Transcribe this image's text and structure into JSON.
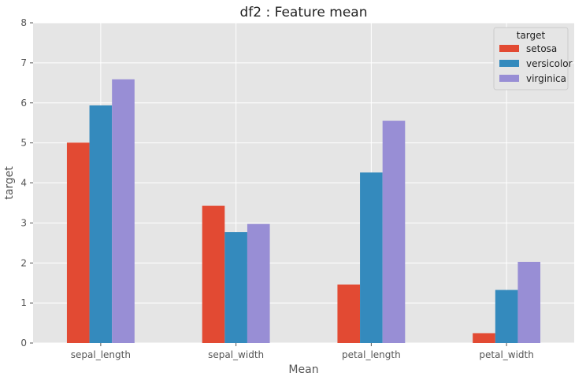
{
  "chart_data": {
    "type": "bar",
    "title": "df2 : Feature mean",
    "xlabel": "Mean",
    "ylabel": "target",
    "categories": [
      "sepal_length",
      "sepal_width",
      "petal_length",
      "petal_width"
    ],
    "ylim": [
      0,
      8
    ],
    "yticks": [
      "0",
      "1",
      "2",
      "3",
      "4",
      "5",
      "6",
      "7",
      "8"
    ],
    "grid": true,
    "legend": {
      "title": "target",
      "placement": "top-right"
    },
    "series": [
      {
        "name": "setosa",
        "values": [
          5.006,
          3.428,
          1.462,
          0.246
        ]
      },
      {
        "name": "versicolor",
        "values": [
          5.936,
          2.77,
          4.26,
          1.326
        ]
      },
      {
        "name": "virginica",
        "values": [
          6.588,
          2.974,
          5.552,
          2.026
        ]
      }
    ]
  },
  "colors": {
    "plot_background": "#e5e5e5",
    "grid": "#ffffff",
    "series": [
      "#e24a33",
      "#348abd",
      "#988ed5"
    ]
  }
}
